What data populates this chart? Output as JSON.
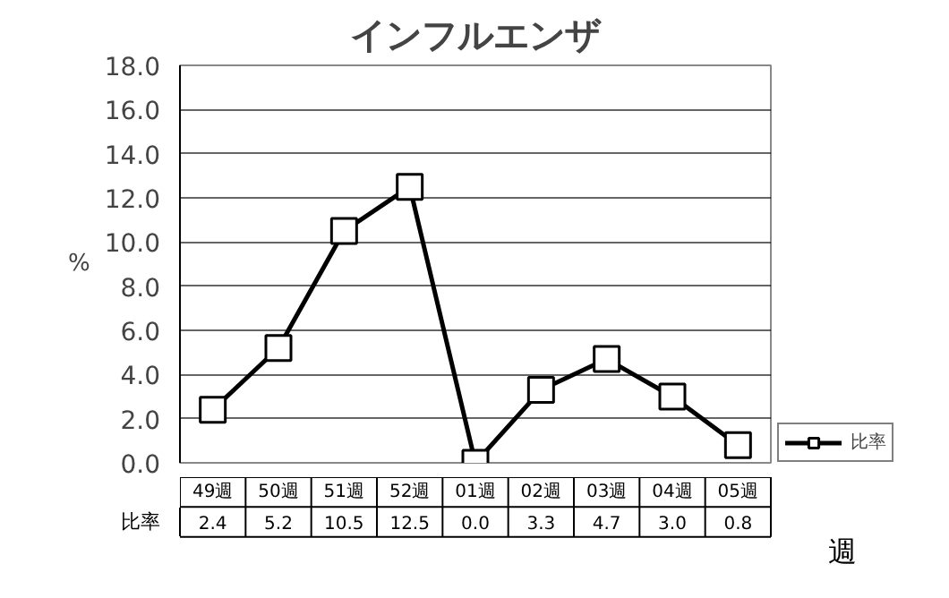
{
  "chart_data": {
    "type": "line",
    "title": "インフルエンザ",
    "xlabel": "週",
    "ylabel": "%",
    "categories": [
      "49週",
      "50週",
      "51週",
      "52週",
      "01週",
      "02週",
      "03週",
      "04週",
      "05週"
    ],
    "series": [
      {
        "name": "比率",
        "color": "#000000",
        "values": [
          2.4,
          5.2,
          10.5,
          12.5,
          0.0,
          3.3,
          4.7,
          3.0,
          0.8
        ],
        "value_labels": [
          "2.4",
          "5.2",
          "10.5",
          "12.5",
          "0.0",
          "3.3",
          "4.7",
          "3.0",
          "0.8"
        ]
      }
    ],
    "ylim": [
      0,
      18
    ],
    "yticks": [
      {
        "value": 0,
        "label": "0.0"
      },
      {
        "value": 2,
        "label": "2.0"
      },
      {
        "value": 4,
        "label": "4.0"
      },
      {
        "value": 6,
        "label": "6.0"
      },
      {
        "value": 8,
        "label": "8.0"
      },
      {
        "value": 10,
        "label": "10.0"
      },
      {
        "value": 12,
        "label": "12.0"
      },
      {
        "value": 14,
        "label": "14.0"
      },
      {
        "value": 16,
        "label": "16.0"
      },
      {
        "value": 18,
        "label": "18.0"
      }
    ],
    "grid": "y",
    "legend": "right",
    "marker": "square",
    "line_style": "solid"
  }
}
